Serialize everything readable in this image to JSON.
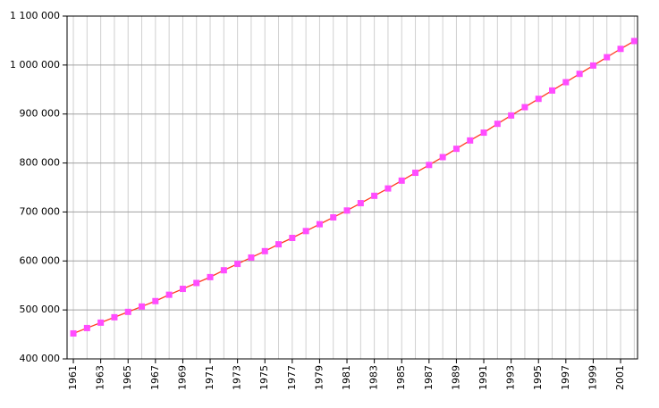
{
  "chart_data": {
    "type": "line",
    "x": [
      1961,
      1962,
      1963,
      1964,
      1965,
      1966,
      1967,
      1968,
      1969,
      1970,
      1971,
      1972,
      1973,
      1974,
      1975,
      1976,
      1977,
      1978,
      1979,
      1980,
      1981,
      1982,
      1983,
      1984,
      1985,
      1986,
      1987,
      1988,
      1989,
      1990,
      1991,
      1992,
      1993,
      1994,
      1995,
      1996,
      1997,
      1998,
      1999,
      2000,
      2001,
      2002
    ],
    "values": [
      452000,
      463000,
      474000,
      485000,
      496000,
      507000,
      518000,
      531000,
      543000,
      555000,
      567000,
      581000,
      594000,
      607000,
      620000,
      634000,
      647000,
      661000,
      675000,
      689000,
      703000,
      718000,
      733000,
      748000,
      764000,
      780000,
      796000,
      812000,
      829000,
      846000,
      862000,
      880000,
      897000,
      914000,
      931000,
      948000,
      965000,
      982000,
      999000,
      1016000,
      1033000,
      1049000
    ],
    "color": "#ff3b1f",
    "marker_color": "#ff4cff",
    "xlim": [
      1960.54,
      2002.24
    ],
    "xticks": [
      1961,
      1963,
      1965,
      1967,
      1969,
      1971,
      1973,
      1975,
      1977,
      1979,
      1981,
      1983,
      1985,
      1987,
      1989,
      1991,
      1993,
      1995,
      1997,
      1999,
      2001
    ],
    "ylim": [
      400000,
      1100000
    ],
    "yticks": [
      {
        "value": 400000,
        "label": "400 000"
      },
      {
        "value": 500000,
        "label": "500 000"
      },
      {
        "value": 600000,
        "label": "600 000"
      },
      {
        "value": 700000,
        "label": "700 000"
      },
      {
        "value": 800000,
        "label": "800 000"
      },
      {
        "value": 900000,
        "label": "900 000"
      },
      {
        "value": 1000000,
        "label": "1 000 000"
      },
      {
        "value": 1100000,
        "label": "1 100 000"
      }
    ],
    "grid": true
  }
}
